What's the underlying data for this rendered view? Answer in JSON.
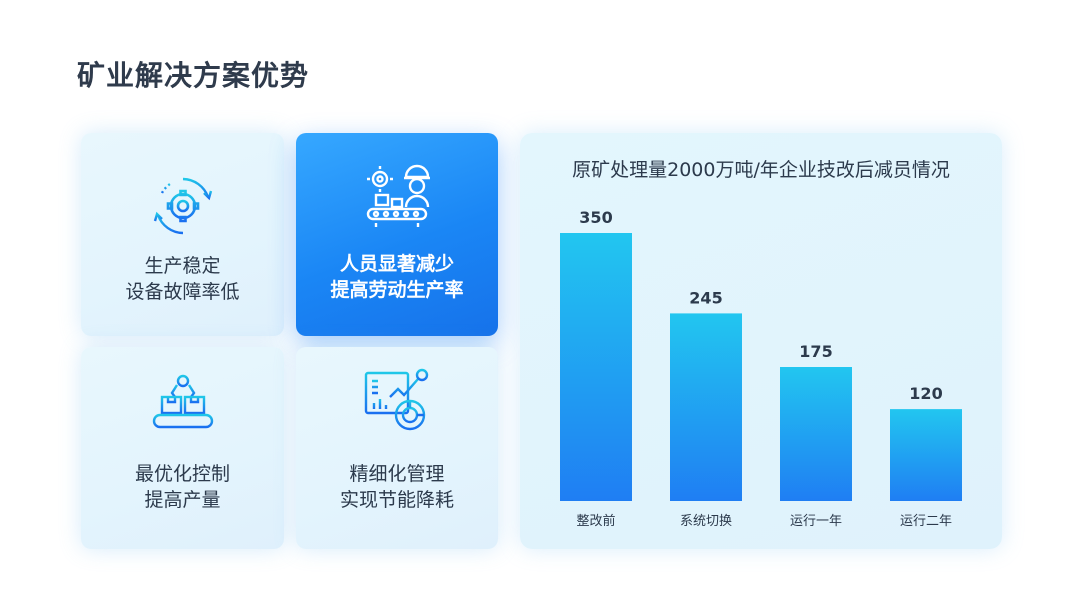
{
  "page": {
    "title": "矿业解决方案优势"
  },
  "cards": [
    {
      "line1": "生产稳定",
      "line2": "设备故障率低",
      "icon": "gear-cycle-icon",
      "active": false
    },
    {
      "line1": "人员显著减少",
      "line2": "提高劳动生产率",
      "icon": "worker-conveyor-icon",
      "active": true
    },
    {
      "line1": "最优化控制",
      "line2": "提高产量",
      "icon": "robot-arm-conveyor-icon",
      "active": false
    },
    {
      "line1": "精细化管理",
      "line2": "实现节能降耗",
      "icon": "analytics-dashboard-icon",
      "active": false
    }
  ],
  "colors": {
    "accent": "#1a86f5",
    "bar_top": "#22c6f0",
    "bar_bottom": "#1f7ef3",
    "text": "#2c3a4c"
  },
  "chart_data": {
    "type": "bar",
    "title": "原矿处理量2000万吨/年企业技改后减员情况",
    "categories": [
      "整改前",
      "系统切换",
      "运行一年",
      "运行二年"
    ],
    "values": [
      350,
      245,
      175,
      120
    ],
    "xlabel": "",
    "ylabel": "",
    "ylim": [
      0,
      350
    ],
    "grid": false,
    "data_labels": true
  }
}
